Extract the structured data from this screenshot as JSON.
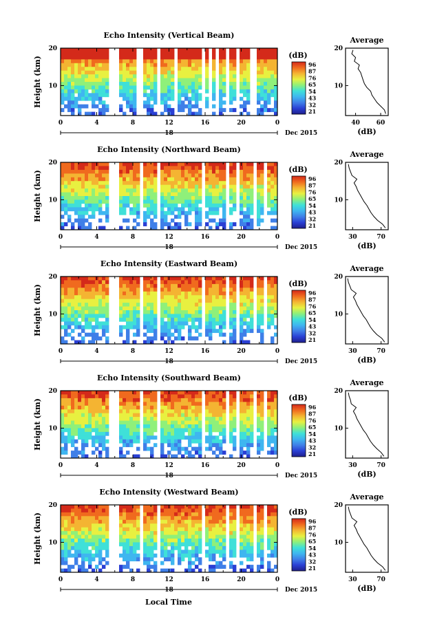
{
  "figure": {
    "xlabel": "Local Time",
    "date_label": "Dec 2015",
    "day_label": "18",
    "avg_title": "Average",
    "colorbar_unit": "(dB)",
    "avg_xlabel": "(dB)",
    "ylabel": "Height (km)"
  },
  "colors": {
    "colormap": [
      "#1f1f8c",
      "#2a3fd4",
      "#3f7fe8",
      "#3fb6f0",
      "#3fe0d8",
      "#8ff07a",
      "#e8f040",
      "#f4b432",
      "#f06a1e",
      "#d42a1a"
    ]
  },
  "chart_data": [
    {
      "type": "heatmap",
      "title": "Echo Intensity (Vertical Beam)",
      "x_ticks": [
        "0",
        "4",
        "8",
        "12",
        "16",
        "20",
        "0"
      ],
      "y_ticks": [
        "20",
        "10"
      ],
      "xlim": [
        0,
        24
      ],
      "ylim": [
        2,
        20
      ],
      "colorbar_ticks": [
        "96",
        "87",
        "76",
        "65",
        "54",
        "43",
        "32",
        "21"
      ],
      "gaps_hours": [
        [
          5.4,
          6.4
        ],
        [
          8.5,
          9.1
        ],
        [
          10.5,
          11.0
        ],
        [
          12.7,
          13.0
        ],
        [
          15.5,
          16.0
        ],
        [
          16.5,
          16.8
        ],
        [
          17.3,
          17.6
        ],
        [
          18.2,
          18.6
        ],
        [
          19.3,
          19.7
        ],
        [
          21.1,
          21.8
        ],
        [
          22.4,
          22.6
        ]
      ],
      "avg_profile": {
        "x_ticks": [
          "40",
          "60"
        ],
        "xlim": [
          32,
          66
        ],
        "y_ticks": [
          "20",
          "10"
        ],
        "height_km": [
          2.5,
          3.5,
          4.5,
          5.5,
          6.5,
          7.5,
          8.5,
          9.5,
          10.5,
          11.5,
          12.5,
          13.5,
          14.5,
          15.5,
          16.5,
          17.5,
          18.5,
          19.5
        ],
        "values_db": [
          64,
          63,
          60,
          57,
          55,
          53,
          52,
          49,
          47,
          46,
          45,
          44,
          42,
          43,
          39,
          40,
          37,
          38
        ]
      }
    },
    {
      "type": "heatmap",
      "title": "Echo Intensity (Northward Beam)",
      "x_ticks": [
        "0",
        "4",
        "8",
        "12",
        "16",
        "20",
        "0"
      ],
      "y_ticks": [
        "20",
        "10"
      ],
      "xlim": [
        0,
        24
      ],
      "ylim": [
        2,
        20
      ],
      "colorbar_ticks": [
        "96",
        "87",
        "76",
        "65",
        "54",
        "43",
        "32",
        "21"
      ],
      "gaps_hours": [
        [
          5.5,
          6.3
        ],
        [
          8.6,
          9.0
        ],
        [
          10.6,
          11.1
        ],
        [
          12.8,
          13.0
        ],
        [
          15.6,
          16.1
        ],
        [
          16.6,
          16.9
        ],
        [
          17.4,
          17.7
        ],
        [
          18.3,
          18.6
        ],
        [
          19.4,
          19.8
        ],
        [
          21.2,
          21.8
        ],
        [
          22.4,
          22.7
        ]
      ],
      "avg_profile": {
        "x_ticks": [
          "30",
          "70"
        ],
        "xlim": [
          20,
          80
        ],
        "y_ticks": [
          "20",
          "10"
        ],
        "height_km": [
          2.5,
          3.5,
          4.5,
          5.5,
          6.5,
          7.5,
          8.5,
          9.5,
          10.5,
          11.5,
          12.5,
          13.5,
          14.5,
          15.5,
          16.5,
          17.5,
          18.5,
          19.5
        ],
        "values_db": [
          76,
          72,
          65,
          60,
          56,
          53,
          50,
          46,
          43,
          40,
          37,
          35,
          32,
          36,
          29,
          27,
          25,
          24
        ]
      }
    },
    {
      "type": "heatmap",
      "title": "Echo Intensity (Eastward Beam)",
      "x_ticks": [
        "0",
        "4",
        "8",
        "12",
        "16",
        "20",
        "0"
      ],
      "y_ticks": [
        "20",
        "10"
      ],
      "xlim": [
        0,
        24
      ],
      "ylim": [
        2,
        20
      ],
      "colorbar_ticks": [
        "96",
        "87",
        "76",
        "65",
        "54",
        "43",
        "32",
        "21"
      ],
      "gaps_hours": [
        [
          5.5,
          6.3
        ],
        [
          8.6,
          9.0
        ],
        [
          10.6,
          11.1
        ],
        [
          12.8,
          13.0
        ],
        [
          15.6,
          16.1
        ],
        [
          16.6,
          16.9
        ],
        [
          17.4,
          17.7
        ],
        [
          18.3,
          18.6
        ],
        [
          19.4,
          19.8
        ],
        [
          21.2,
          21.8
        ],
        [
          22.4,
          22.7
        ]
      ],
      "avg_profile": {
        "x_ticks": [
          "30",
          "70"
        ],
        "xlim": [
          20,
          80
        ],
        "y_ticks": [
          "20",
          "10"
        ],
        "height_km": [
          2.5,
          3.5,
          4.5,
          5.5,
          6.5,
          7.5,
          8.5,
          9.5,
          10.5,
          11.5,
          12.5,
          13.5,
          14.5,
          15.5,
          16.5,
          17.5,
          18.5,
          19.5
        ],
        "values_db": [
          75,
          71,
          64,
          59,
          55,
          52,
          49,
          45,
          42,
          39,
          36,
          34,
          31,
          35,
          28,
          26,
          24,
          23
        ]
      }
    },
    {
      "type": "heatmap",
      "title": "Echo Intensity (Southward Beam)",
      "x_ticks": [
        "0",
        "4",
        "8",
        "12",
        "16",
        "20",
        "0"
      ],
      "y_ticks": [
        "20",
        "10"
      ],
      "xlim": [
        0,
        24
      ],
      "ylim": [
        2,
        20
      ],
      "colorbar_ticks": [
        "96",
        "87",
        "76",
        "65",
        "54",
        "43",
        "32",
        "21"
      ],
      "gaps_hours": [
        [
          5.5,
          6.3
        ],
        [
          8.6,
          9.0
        ],
        [
          10.6,
          11.1
        ],
        [
          12.8,
          13.0
        ],
        [
          15.6,
          16.1
        ],
        [
          16.6,
          16.9
        ],
        [
          17.4,
          17.7
        ],
        [
          18.3,
          18.6
        ],
        [
          19.4,
          19.8
        ],
        [
          21.2,
          21.8
        ],
        [
          22.4,
          22.7
        ]
      ],
      "avg_profile": {
        "x_ticks": [
          "30",
          "70"
        ],
        "xlim": [
          20,
          80
        ],
        "y_ticks": [
          "20",
          "10"
        ],
        "height_km": [
          2.5,
          3.5,
          4.5,
          5.5,
          6.5,
          7.5,
          8.5,
          9.5,
          10.5,
          11.5,
          12.5,
          13.5,
          14.5,
          15.5,
          16.5,
          17.5,
          18.5,
          19.5
        ],
        "values_db": [
          74,
          70,
          64,
          59,
          55,
          52,
          49,
          45,
          42,
          39,
          36,
          34,
          31,
          35,
          28,
          27,
          25,
          24
        ]
      }
    },
    {
      "type": "heatmap",
      "title": "Echo Intensity (Westward Beam)",
      "x_ticks": [
        "0",
        "4",
        "8",
        "12",
        "16",
        "20",
        "0"
      ],
      "y_ticks": [
        "20",
        "10"
      ],
      "xlim": [
        0,
        24
      ],
      "ylim": [
        2,
        20
      ],
      "colorbar_ticks": [
        "96",
        "87",
        "76",
        "65",
        "54",
        "43",
        "32",
        "21"
      ],
      "gaps_hours": [
        [
          5.5,
          6.3
        ],
        [
          8.6,
          9.0
        ],
        [
          10.6,
          11.1
        ],
        [
          12.8,
          13.0
        ],
        [
          15.6,
          16.1
        ],
        [
          16.6,
          16.9
        ],
        [
          17.4,
          17.7
        ],
        [
          18.3,
          18.6
        ],
        [
          19.4,
          19.8
        ],
        [
          21.2,
          21.8
        ],
        [
          22.4,
          22.7
        ]
      ],
      "avg_profile": {
        "x_ticks": [
          "30",
          "70"
        ],
        "xlim": [
          20,
          80
        ],
        "y_ticks": [
          "20",
          "10"
        ],
        "height_km": [
          2.5,
          3.5,
          4.5,
          5.5,
          6.5,
          7.5,
          8.5,
          9.5,
          10.5,
          11.5,
          12.5,
          13.5,
          14.5,
          15.5,
          16.5,
          17.5,
          18.5,
          19.5
        ],
        "values_db": [
          76,
          72,
          65,
          60,
          56,
          53,
          50,
          46,
          43,
          40,
          37,
          35,
          32,
          36,
          29,
          27,
          25,
          24
        ]
      }
    }
  ]
}
